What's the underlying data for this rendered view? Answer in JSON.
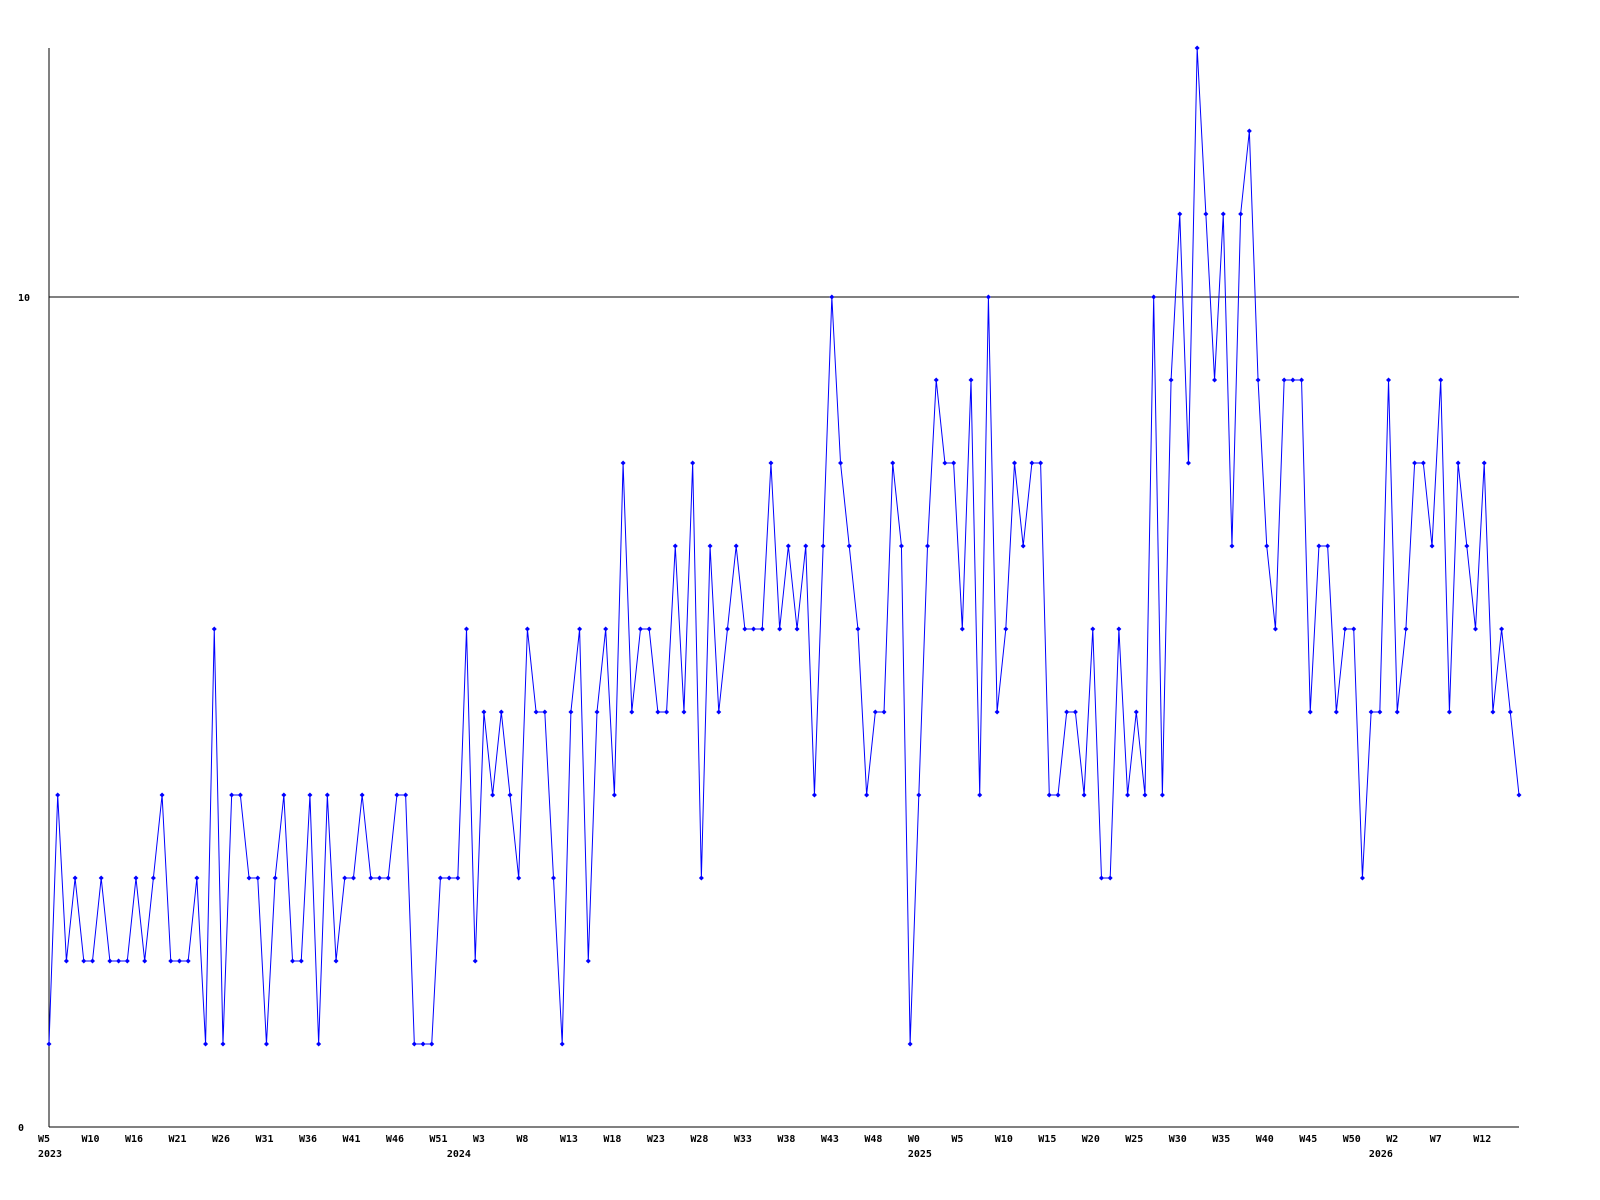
{
  "chart_data": {
    "type": "line",
    "ylim": [
      0,
      13
    ],
    "yticks": [
      0,
      10
    ],
    "grid": true,
    "categories": [
      "W5",
      null,
      null,
      null,
      null,
      "W10",
      null,
      null,
      null,
      null,
      "W16",
      null,
      null,
      null,
      null,
      "W21",
      null,
      null,
      null,
      null,
      "W26",
      null,
      null,
      null,
      null,
      "W31",
      null,
      null,
      null,
      null,
      "W36",
      null,
      null,
      null,
      null,
      "W41",
      null,
      null,
      null,
      null,
      "W46",
      null,
      null,
      null,
      null,
      "W51",
      null,
      null,
      null,
      null,
      "W3",
      null,
      null,
      null,
      null,
      "W8",
      null,
      null,
      null,
      null,
      "W13",
      null,
      null,
      null,
      null,
      "W18",
      null,
      null,
      null,
      null,
      "W23",
      null,
      null,
      null,
      null,
      "W28",
      null,
      null,
      null,
      null,
      "W33",
      null,
      null,
      null,
      null,
      "W38",
      null,
      null,
      null,
      null,
      "W43",
      null,
      null,
      null,
      null,
      "W48",
      null,
      null,
      null,
      null,
      "W0",
      null,
      null,
      null,
      null,
      "W5",
      null,
      null,
      null,
      null,
      "W10",
      null,
      null,
      null,
      null,
      "W15",
      null,
      null,
      null,
      null,
      "W20",
      null,
      null,
      null,
      null,
      "W25",
      null,
      null,
      null,
      null,
      "W30",
      null,
      null,
      null,
      null,
      "W35",
      null,
      null,
      null,
      null,
      "W40",
      null,
      null,
      null,
      null,
      "W45",
      null,
      null,
      null,
      null,
      "W50",
      null,
      null,
      null,
      null,
      "W2",
      null,
      null,
      null,
      null,
      "W7",
      null,
      null,
      null,
      null,
      "W12",
      null,
      null,
      null,
      null
    ],
    "years": [
      "2023",
      null,
      null,
      null,
      null,
      null,
      null,
      null,
      null,
      null,
      null,
      null,
      null,
      null,
      null,
      null,
      null,
      null,
      null,
      null,
      null,
      null,
      null,
      null,
      null,
      null,
      null,
      null,
      null,
      null,
      null,
      null,
      null,
      null,
      null,
      null,
      null,
      null,
      null,
      null,
      null,
      null,
      null,
      null,
      null,
      null,
      null,
      "2024",
      null,
      null,
      null,
      null,
      null,
      null,
      null,
      null,
      null,
      null,
      null,
      null,
      null,
      null,
      null,
      null,
      null,
      null,
      null,
      null,
      null,
      null,
      null,
      null,
      null,
      null,
      null,
      null,
      null,
      null,
      null,
      null,
      null,
      null,
      null,
      null,
      null,
      null,
      null,
      null,
      null,
      null,
      null,
      null,
      null,
      null,
      null,
      null,
      null,
      null,
      null,
      null,
      "2025",
      null,
      null,
      null,
      null,
      null,
      null,
      null,
      null,
      null,
      null,
      null,
      null,
      null,
      null,
      null,
      null,
      null,
      null,
      null,
      null,
      null,
      null,
      null,
      null,
      null,
      null,
      null,
      null,
      null,
      null,
      null,
      null,
      null,
      null,
      null,
      null,
      null,
      null,
      null,
      null,
      null,
      null,
      null,
      null,
      null,
      null,
      null,
      null,
      null,
      null,
      null,
      null,
      "2026",
      null,
      null,
      null,
      null,
      null,
      null,
      null,
      null,
      null,
      null,
      null,
      null,
      null,
      null,
      null,
      null
    ],
    "series": [
      {
        "color": "#0000ff",
        "values": [
          1,
          4,
          2,
          3,
          2,
          2,
          3,
          2,
          2,
          2,
          3,
          2,
          3,
          4,
          2,
          2,
          2,
          3,
          1,
          6,
          1,
          4,
          4,
          3,
          3,
          1,
          3,
          4,
          2,
          2,
          4,
          1,
          4,
          2,
          3,
          3,
          4,
          3,
          3,
          3,
          4,
          4,
          1,
          1,
          1,
          3,
          3,
          3,
          6,
          2,
          5,
          4,
          5,
          4,
          3,
          6,
          5,
          5,
          3,
          1,
          5,
          6,
          2,
          5,
          6,
          4,
          8,
          5,
          6,
          6,
          5,
          5,
          7,
          5,
          8,
          3,
          7,
          5,
          6,
          7,
          6,
          6,
          6,
          8,
          6,
          7,
          6,
          7,
          4,
          7,
          10,
          8,
          7,
          6,
          4,
          5,
          5,
          8,
          7,
          1,
          4,
          7,
          9,
          8,
          8,
          6,
          9,
          4,
          10,
          5,
          6,
          8,
          7,
          8,
          8,
          4,
          4,
          5,
          5,
          4,
          6,
          3,
          3,
          6,
          4,
          5,
          4,
          10,
          4,
          9,
          11,
          8,
          13,
          11,
          9,
          11,
          7,
          11,
          12,
          9,
          7,
          6,
          9,
          9,
          9,
          5,
          7,
          7,
          5,
          6,
          6,
          3,
          5,
          5,
          9,
          5,
          6,
          8,
          8,
          7,
          9,
          5,
          8,
          7,
          6,
          8,
          5,
          6,
          5,
          4
        ]
      }
    ]
  }
}
